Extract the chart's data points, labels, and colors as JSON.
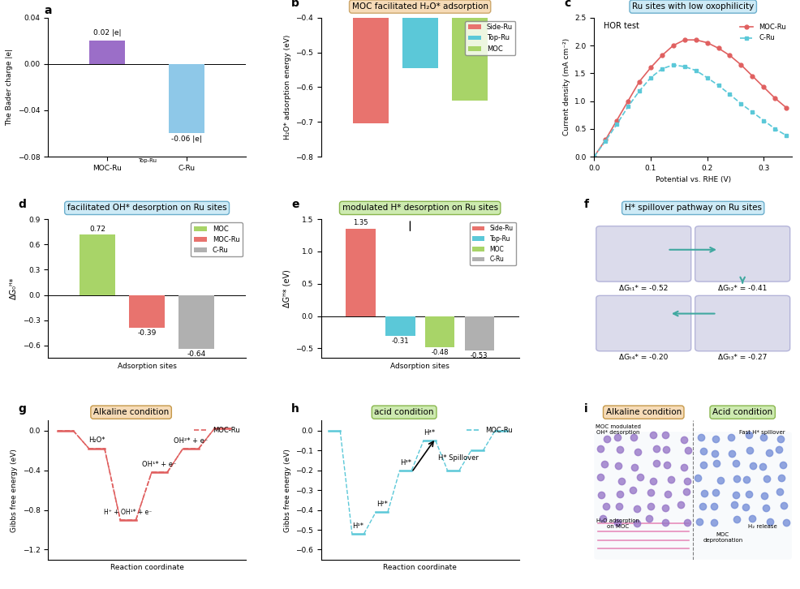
{
  "panel_a": {
    "bars": [
      0.02,
      -0.06
    ],
    "bar_colors": [
      "#9b6ec8",
      "#8ec8e8"
    ],
    "bar_labels": [
      "MOC-Ru",
      "C-Ru"
    ],
    "ylabel": "The Bader charge |e|",
    "ylim": [
      -0.08,
      0.04
    ],
    "yticks": [
      -0.08,
      -0.04,
      0.0,
      0.04
    ],
    "annotations": [
      "0.02 |e|",
      "-0.06 |e|"
    ],
    "title": "a"
  },
  "panel_b": {
    "bars": [
      -0.705,
      -0.545,
      -0.638
    ],
    "bar_colors": [
      "#e8736e",
      "#5bc8d8",
      "#a8d468"
    ],
    "bar_labels": [
      "Side-Ru",
      "Top-Ru",
      "MOC"
    ],
    "ylabel": "H₂O* adsorption energy (eV)",
    "ylim": [
      -0.8,
      -0.4
    ],
    "yticks": [
      -0.8,
      -0.7,
      -0.6,
      -0.5,
      -0.4
    ],
    "title": "b",
    "box_title": "MOC facilitated H₂O* adsorption",
    "box_color": "#f5d8b0"
  },
  "panel_c": {
    "title": "c",
    "box_title": "Ru sites with low oxophilicity",
    "box_color": "#c8e8f5",
    "xlabel": "Potential vs. RHE (V)",
    "ylabel": "Current density (mA cm⁻²)",
    "xlim": [
      0.0,
      0.35
    ],
    "ylim": [
      0.0,
      2.5
    ],
    "xticks": [
      0.0,
      0.1,
      0.2,
      0.3
    ],
    "yticks": [
      0.0,
      0.5,
      1.0,
      1.5,
      2.0,
      2.5
    ],
    "moc_ru_x": [
      0.0,
      0.02,
      0.04,
      0.06,
      0.08,
      0.1,
      0.12,
      0.14,
      0.16,
      0.18,
      0.2,
      0.22,
      0.24,
      0.26,
      0.28,
      0.3,
      0.32,
      0.34
    ],
    "moc_ru_y": [
      0.0,
      0.3,
      0.65,
      1.0,
      1.35,
      1.6,
      1.82,
      2.0,
      2.1,
      2.1,
      2.05,
      1.95,
      1.82,
      1.65,
      1.45,
      1.25,
      1.05,
      0.88
    ],
    "c_ru_x": [
      0.0,
      0.02,
      0.04,
      0.06,
      0.08,
      0.1,
      0.12,
      0.14,
      0.16,
      0.18,
      0.2,
      0.22,
      0.24,
      0.26,
      0.28,
      0.3,
      0.32,
      0.34
    ],
    "c_ru_y": [
      0.0,
      0.28,
      0.58,
      0.9,
      1.18,
      1.42,
      1.58,
      1.65,
      1.62,
      1.55,
      1.42,
      1.28,
      1.12,
      0.95,
      0.8,
      0.65,
      0.5,
      0.38
    ],
    "moc_ru_color": "#e06060",
    "c_ru_color": "#5bc8d8",
    "legend_label_hor": "HOR test"
  },
  "panel_d": {
    "bars": [
      0.72,
      -0.39,
      -0.64
    ],
    "bar_colors": [
      "#a8d468",
      "#e8736e",
      "#b0b0b0"
    ],
    "bar_labels": [
      "MOC",
      "MOC-Ru",
      "C-Ru"
    ],
    "ylabel": "ΔG₀ᴴ*",
    "ylim": [
      -0.75,
      0.9
    ],
    "yticks": [
      -0.6,
      -0.3,
      0.0,
      0.3,
      0.6,
      0.9
    ],
    "xlabel": "Adsorption sites",
    "title": "d",
    "box_title": "facilitated OH* desorption on Ru sites",
    "box_color": "#c8e8f5",
    "annotations": [
      "0.72",
      "-0.39",
      "-0.64"
    ]
  },
  "panel_e": {
    "bars": [
      1.35,
      -0.31,
      -0.48,
      -0.53
    ],
    "bar_colors": [
      "#e8736e",
      "#5bc8d8",
      "#a8d468",
      "#b0b0b0"
    ],
    "bar_labels": [
      "Side-Ru",
      "Top-Ru",
      "MOC",
      "C-Ru"
    ],
    "ylabel": "ΔGᴴ* (eV)",
    "ylim": [
      -0.65,
      1.5
    ],
    "yticks": [
      -0.5,
      0.0,
      0.5,
      1.0,
      1.5
    ],
    "xlabel": "Adsorption sites",
    "title": "e",
    "box_title": "modulated H* desorption on Ru sites",
    "box_color": "#c8e8a8",
    "annotations": [
      "1.35",
      "-0.31",
      "-0.48",
      "-0.53"
    ]
  },
  "panel_f": {
    "title": "f",
    "box_title": "H* spillover pathway on Ru sites",
    "box_color": "#c8e8f5",
    "annotations": [
      "ΔGₜ₁* = -0.52",
      "ΔGₜ₂* = -0.41",
      "ΔGₜ₄* = -0.20",
      "ΔGₜ₃* = -0.27"
    ]
  },
  "panel_g": {
    "title": "g",
    "box_title": "Alkaline condition",
    "box_color": "#f5d8b0",
    "xlabel": "Reaction coordinate",
    "ylabel": "Gibbs free energy (eV)",
    "ylim": [
      -1.3,
      0.1
    ],
    "yticks": [
      -1.2,
      -0.8,
      -0.4,
      0.0
    ],
    "x_coords": [
      0,
      1,
      2,
      3,
      4,
      5,
      6
    ],
    "y_coords": [
      0.0,
      -0.18,
      -0.42,
      -0.9,
      -0.42,
      -0.18,
      0.02
    ],
    "labels": [
      "",
      "H₂O*",
      "",
      "OH¹* + e⁻",
      "OH²* + e⁻",
      "",
      ""
    ],
    "line_color": "#e06060",
    "extra_labels": [
      "H⁺ + OH¹* + e⁻"
    ],
    "legend": "MOC-Ru"
  },
  "panel_h": {
    "title": "h",
    "box_title": "acid condition",
    "box_color": "#c8e8a8",
    "xlabel": "Reaction coordinate",
    "ylabel": "Gibbs free energy (eV)",
    "ylim": [
      -0.65,
      0.05
    ],
    "yticks": [
      -0.6,
      -0.5,
      -0.4,
      -0.3,
      -0.2,
      -0.1,
      0.0
    ],
    "x_coords": [
      0,
      1,
      2,
      3,
      4,
      5,
      6,
      7
    ],
    "y_coords": [
      0.0,
      -0.52,
      -0.41,
      -0.2,
      -0.05,
      -0.2,
      -0.1,
      0.0
    ],
    "labels": [
      "",
      "H¹*",
      "H²*",
      "H³*",
      "H⁴*",
      "",
      "",
      ""
    ],
    "line_color": "#5bc8d8",
    "legend": "MOC-Ru",
    "spillover_label": "H* Spillover"
  },
  "panel_i": {
    "title": "i",
    "alkaline_label": "Alkaline condition",
    "acid_label": "Acid condition",
    "alkaline_color": "#f5d8b0",
    "acid_color": "#c8e8a8"
  }
}
